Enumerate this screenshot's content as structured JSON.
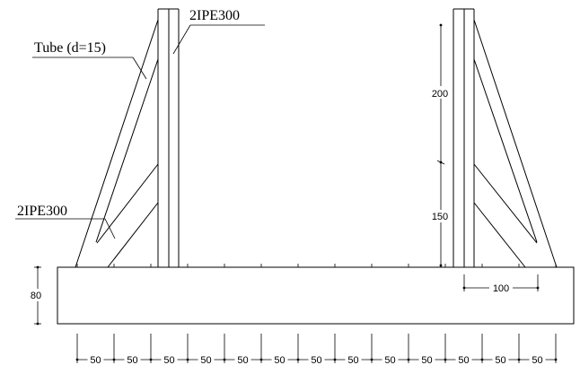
{
  "labels": {
    "tube": "Tube (d=15)",
    "ipe_top": "2IPE300",
    "ipe_left": "2IPE300"
  },
  "dimensions": {
    "height_200": "200",
    "height_150": "150",
    "width_100": "100",
    "base_80": "80",
    "spacing": [
      "50",
      "50",
      "50",
      "50",
      "50",
      "50",
      "50",
      "50",
      "50",
      "50",
      "50",
      "50",
      "50"
    ]
  }
}
